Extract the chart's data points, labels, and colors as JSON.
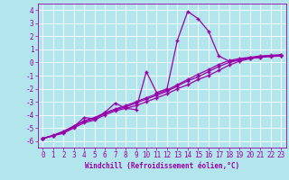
{
  "background_color": "#b3e5ec",
  "grid_color": "#ffffff",
  "line_color": "#9900aa",
  "marker": "+",
  "markersize": 3.5,
  "markeredgewidth": 1.0,
  "linewidth": 0.9,
  "xlabel": "Windchill (Refroidissement éolien,°C)",
  "xlabel_fontsize": 5.5,
  "tick_fontsize": 5.5,
  "xlim": [
    -0.5,
    23.5
  ],
  "ylim": [
    -6.5,
    4.5
  ],
  "yticks": [
    -6,
    -5,
    -4,
    -3,
    -2,
    -1,
    0,
    1,
    2,
    3,
    4
  ],
  "xticks": [
    0,
    1,
    2,
    3,
    4,
    5,
    6,
    7,
    8,
    9,
    10,
    11,
    12,
    13,
    14,
    15,
    16,
    17,
    18,
    19,
    20,
    21,
    22,
    23
  ],
  "lines": [
    {
      "x": [
        0,
        1,
        2,
        3,
        4,
        5,
        6,
        7,
        8,
        9,
        10,
        11,
        12,
        13,
        14,
        15,
        16,
        17,
        18,
        19,
        20,
        21,
        22,
        23
      ],
      "y": [
        -5.8,
        -5.6,
        -5.4,
        -5.0,
        -4.6,
        -4.4,
        -4.0,
        -3.7,
        -3.5,
        -3.3,
        -3.0,
        -2.7,
        -2.4,
        -2.0,
        -1.7,
        -1.3,
        -1.0,
        -0.6,
        -0.2,
        0.1,
        0.3,
        0.4,
        0.5,
        0.5
      ]
    },
    {
      "x": [
        0,
        1,
        2,
        3,
        4,
        5,
        6,
        7,
        8,
        9,
        10,
        11,
        12,
        13,
        14,
        15,
        16,
        17,
        18,
        19,
        20,
        21,
        22,
        23
      ],
      "y": [
        -5.8,
        -5.6,
        -5.3,
        -4.9,
        -4.5,
        -4.3,
        -3.9,
        -3.6,
        -3.4,
        -3.1,
        -2.8,
        -2.5,
        -2.2,
        -1.8,
        -1.4,
        -1.1,
        -0.7,
        -0.3,
        0.0,
        0.2,
        0.35,
        0.45,
        0.5,
        0.55
      ]
    },
    {
      "x": [
        0,
        1,
        2,
        3,
        4,
        5,
        6,
        7,
        8,
        9,
        10,
        11,
        12,
        13,
        14,
        15,
        16,
        17,
        18,
        19,
        20,
        21,
        22,
        23
      ],
      "y": [
        -5.8,
        -5.55,
        -5.25,
        -4.85,
        -4.45,
        -4.2,
        -3.85,
        -3.55,
        -3.3,
        -3.0,
        -2.7,
        -2.4,
        -2.1,
        -1.7,
        -1.3,
        -0.9,
        -0.55,
        -0.15,
        0.15,
        0.3,
        0.4,
        0.5,
        0.55,
        0.6
      ]
    },
    {
      "x": [
        0,
        1,
        2,
        3,
        4,
        5,
        6,
        7,
        8,
        9,
        10,
        11,
        12,
        13,
        14,
        15,
        16,
        17,
        18,
        19,
        20,
        21,
        22,
        23
      ],
      "y": [
        -5.8,
        -5.6,
        -5.3,
        -4.9,
        -4.2,
        -4.3,
        -3.8,
        -3.1,
        -3.5,
        -3.6,
        -0.7,
        -2.3,
        -2.0,
        1.7,
        3.9,
        3.35,
        2.4,
        0.5,
        0.1,
        0.2,
        0.3,
        0.4,
        0.45,
        0.5
      ]
    }
  ]
}
